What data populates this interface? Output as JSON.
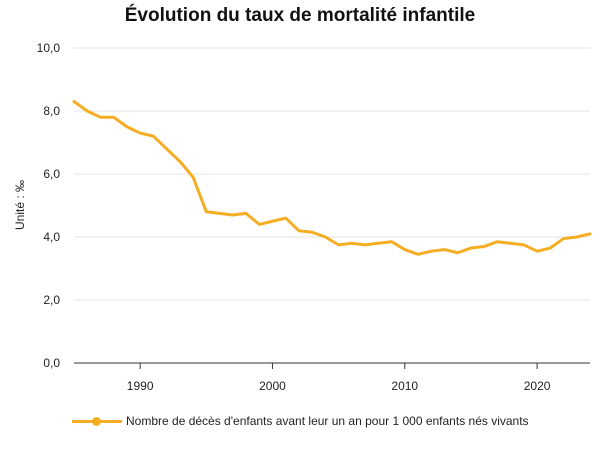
{
  "chart_data": {
    "type": "line",
    "title": "Évolution du taux de mortalité infantile",
    "xlabel": "",
    "ylabel": "Unité : ‰",
    "xlim": [
      1985,
      2024
    ],
    "ylim": [
      0,
      10
    ],
    "xticks": [
      1990,
      2000,
      2010,
      2020
    ],
    "yticks": [
      0,
      2,
      4,
      6,
      8,
      10
    ],
    "ytick_labels": [
      "0,0",
      "2,0",
      "4,0",
      "6,0",
      "8,0",
      "10,0"
    ],
    "grid": "horizontal",
    "legend_position": "bottom",
    "color": "#f5ad24",
    "series": [
      {
        "name": "Nombre de décès d'enfants avant leur un an pour 1 000 enfants nés vivants",
        "x": [
          1985,
          1986,
          1987,
          1988,
          1989,
          1990,
          1991,
          1992,
          1993,
          1994,
          1995,
          1996,
          1997,
          1998,
          1999,
          2000,
          2001,
          2002,
          2003,
          2004,
          2005,
          2006,
          2007,
          2008,
          2009,
          2010,
          2011,
          2012,
          2013,
          2014,
          2015,
          2016,
          2017,
          2018,
          2019,
          2020,
          2021,
          2022,
          2023,
          2024
        ],
        "values": [
          8.3,
          8.0,
          7.8,
          7.8,
          7.5,
          7.3,
          7.2,
          6.8,
          6.4,
          5.9,
          4.8,
          4.75,
          4.7,
          4.75,
          4.4,
          4.5,
          4.6,
          4.2,
          4.15,
          4.0,
          3.75,
          3.8,
          3.75,
          3.8,
          3.85,
          3.6,
          3.45,
          3.55,
          3.6,
          3.5,
          3.65,
          3.7,
          3.85,
          3.8,
          3.75,
          3.55,
          3.65,
          3.95,
          4.0,
          4.1
        ]
      }
    ]
  }
}
